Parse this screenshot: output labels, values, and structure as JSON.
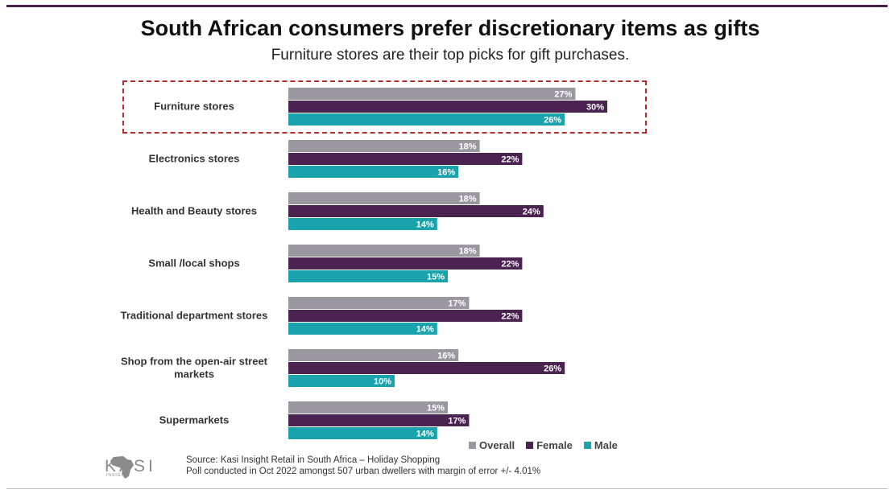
{
  "title": "South African consumers prefer discretionary items as gifts",
  "subtitle": "Furniture stores are their top picks for gift purchases.",
  "colors": {
    "overall": "#9b97a1",
    "female": "#4a2350",
    "male": "#1aa3ad",
    "highlight": "#b52a2a",
    "frame": "#4a1f4f"
  },
  "legend": [
    {
      "label": "Overall",
      "color": "#9b97a1"
    },
    {
      "label": "Female",
      "color": "#4a2350"
    },
    {
      "label": "Male",
      "color": "#1aa3ad"
    }
  ],
  "source": {
    "line1": "Source: Kasi Insight Retail in South Africa – Holiday Shopping",
    "line2": "Poll conducted in Oct 2022 amongst 507 urban dwellers with margin of error +/- 4.01%"
  },
  "logo": {
    "text": "KASI",
    "tagline": "INSIGHT"
  },
  "chart_data": {
    "type": "bar",
    "orientation": "horizontal",
    "title": "South African consumers prefer discretionary items as gifts",
    "subtitle": "Furniture stores are their top picks for gift purchases.",
    "categories": [
      [
        "Furniture stores"
      ],
      [
        "Electronics stores"
      ],
      [
        "Health and Beauty stores"
      ],
      [
        "Small /local shops"
      ],
      [
        "Traditional department stores"
      ],
      [
        "Shop from the open-air street",
        "markets"
      ],
      [
        "Supermarkets"
      ]
    ],
    "series": [
      {
        "name": "Overall",
        "values": [
          27,
          18,
          18,
          18,
          17,
          16,
          15
        ]
      },
      {
        "name": "Female",
        "values": [
          30,
          22,
          24,
          22,
          22,
          26,
          17
        ]
      },
      {
        "name": "Male",
        "values": [
          26,
          16,
          14,
          15,
          14,
          10,
          14
        ]
      }
    ],
    "value_suffix": "%",
    "xlim": [
      0,
      30
    ],
    "legend_position": "bottom-right",
    "highlighted_category": "Furniture stores"
  }
}
